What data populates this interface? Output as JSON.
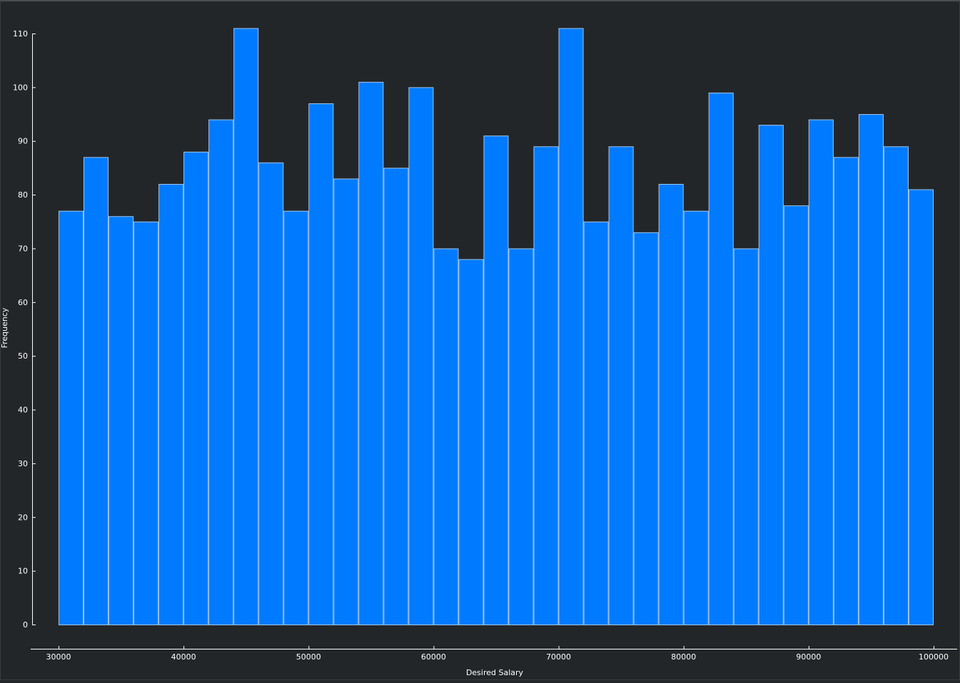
{
  "chart_data": {
    "type": "bar",
    "title": "",
    "xlabel": "Desired Salary",
    "ylabel": "Frequency",
    "bin_edges": [
      30000,
      32000,
      34000,
      36000,
      38000,
      40000,
      42000,
      44000,
      46000,
      48000,
      50000,
      52000,
      54000,
      56000,
      58000,
      60000,
      62000,
      64000,
      66000,
      68000,
      70000,
      72000,
      74000,
      76000,
      78000,
      80000,
      82000,
      84000,
      86000,
      88000,
      90000,
      92000,
      94000,
      96000,
      98000,
      100000
    ],
    "values": [
      77,
      87,
      76,
      75,
      82,
      88,
      94,
      111,
      86,
      77,
      97,
      83,
      101,
      85,
      100,
      70,
      68,
      91,
      70,
      89,
      111,
      75,
      89,
      73,
      82,
      77,
      99,
      70,
      93,
      78,
      94,
      87,
      95,
      89,
      81
    ],
    "xlim": [
      30000,
      100000
    ],
    "ylim": [
      0,
      110
    ],
    "xticks": [
      30000,
      40000,
      50000,
      60000,
      70000,
      80000,
      90000,
      100000
    ],
    "yticks": [
      0,
      10,
      20,
      30,
      40,
      50,
      60,
      70,
      80,
      90,
      100,
      110
    ],
    "grid": false,
    "bar_color": "#007bff",
    "bar_edge_color": "#9fc6ee",
    "background_color": "#232629",
    "text_color": "#ffffff"
  }
}
